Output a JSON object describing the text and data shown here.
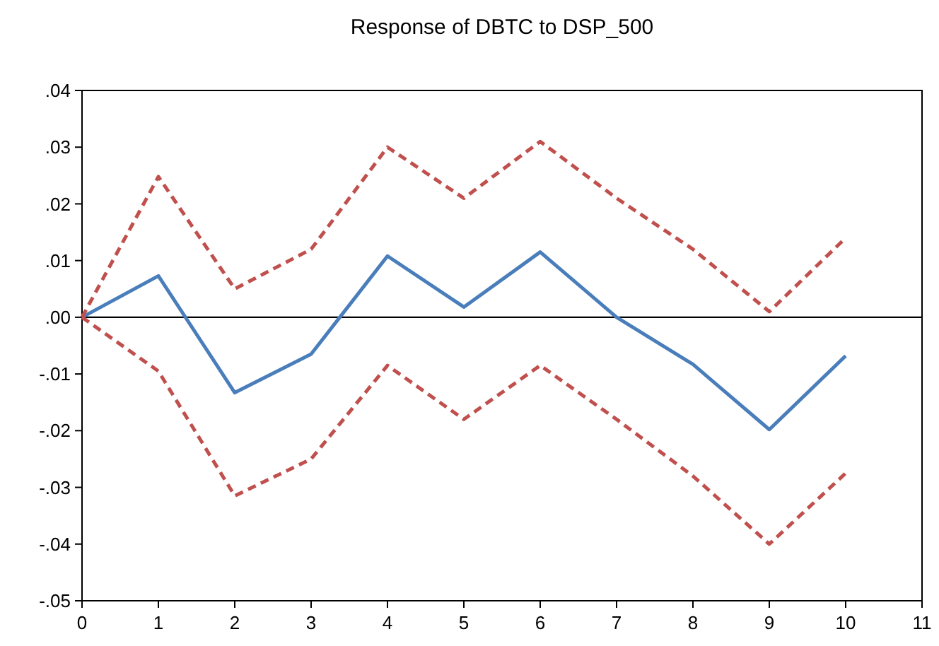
{
  "chart_data": {
    "type": "line",
    "title": "Response of DBTC to DSP_500",
    "x": [
      0,
      1,
      2,
      3,
      4,
      5,
      6,
      7,
      8,
      9,
      10
    ],
    "series": [
      {
        "color": "#4a7ebb",
        "line_style": "solid",
        "values": [
          0,
          0.0073,
          -0.0133,
          -0.0065,
          0.0108,
          0.0018,
          0.0115,
          0,
          -0.0083,
          -0.0198,
          -0.0068
        ]
      },
      {
        "color": "#c0504d",
        "line_style": "dashed",
        "values": [
          0,
          0.0248,
          0.005,
          0.012,
          0.03,
          0.021,
          0.031,
          0.021,
          0.012,
          0.001,
          0.014
        ]
      },
      {
        "color": "#c0504d",
        "line_style": "dashed",
        "values": [
          0,
          -0.0095,
          -0.0315,
          -0.025,
          -0.0085,
          -0.018,
          -0.0085,
          -0.018,
          -0.028,
          -0.04,
          -0.0275
        ]
      }
    ],
    "xlim": [
      0,
      11
    ],
    "xticks": [
      0,
      1,
      2,
      3,
      4,
      5,
      6,
      7,
      8,
      9,
      10,
      11
    ],
    "ylim": [
      -0.05,
      0.04
    ],
    "yticks": [
      {
        "value": -0.05,
        "label": "-.05"
      },
      {
        "value": -0.04,
        "label": "-.04"
      },
      {
        "value": -0.03,
        "label": "-.03"
      },
      {
        "value": -0.02,
        "label": "-.02"
      },
      {
        "value": -0.01,
        "label": "-.01"
      },
      {
        "value": 0,
        "label": ".00"
      },
      {
        "value": 0.01,
        "label": ".01"
      },
      {
        "value": 0.02,
        "label": ".02"
      },
      {
        "value": 0.03,
        "label": ".03"
      },
      {
        "value": 0.04,
        "label": ".04"
      }
    ],
    "ref_lines": [
      {
        "axis": "y",
        "value": 0,
        "color": "#000000"
      }
    ],
    "grid": false
  }
}
